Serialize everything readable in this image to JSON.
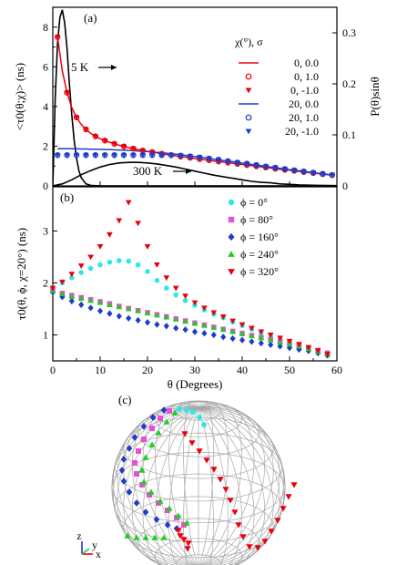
{
  "chart_data": [
    {
      "type": "line",
      "panel_label": "(a)",
      "ylabel": "<τ0(θ;χ)> (ns)",
      "y2label": "P(θ)sinθ",
      "xlim": [
        0,
        60
      ],
      "ylim": [
        0,
        9
      ],
      "y2lim": [
        0,
        0.35
      ],
      "yticks": [
        "0",
        "2",
        "4",
        "6",
        "8"
      ],
      "y2ticks": [
        "0",
        "0.1",
        "0.2",
        "0.3"
      ],
      "legend_title": "χ(°), σ",
      "legend_entries": [
        "0,  0.0",
        "0,  1.0",
        "0, -1.0",
        "20,  0.0",
        "20,  1.0",
        "20, -1.0"
      ],
      "annotations": [
        "5 K",
        "300 K"
      ],
      "x": [
        1,
        2,
        3,
        4,
        5,
        6,
        7,
        8,
        9,
        10,
        11,
        12,
        13,
        14,
        15,
        16,
        17,
        18,
        19,
        20,
        21,
        22,
        23,
        24,
        25,
        26,
        27,
        28,
        29,
        30,
        31,
        32,
        33,
        34,
        35,
        36,
        37,
        38,
        39,
        40,
        41,
        42,
        43,
        44,
        45,
        46,
        47,
        48,
        49,
        50,
        51,
        52,
        53,
        54,
        55,
        56,
        57,
        58,
        59
      ],
      "series": [
        {
          "name": "0,  0.0",
          "color": "#e8000b",
          "style": "line",
          "values": [
            7.5,
            5.8,
            4.7,
            3.95,
            3.45,
            3.1,
            2.85,
            2.65,
            2.5,
            2.38,
            2.28,
            2.2,
            2.12,
            2.05,
            1.99,
            1.93,
            1.88,
            1.83,
            1.78,
            1.74,
            1.7,
            1.66,
            1.62,
            1.58,
            1.55,
            1.51,
            1.48,
            1.45,
            1.42,
            1.38,
            1.35,
            1.32,
            1.29,
            1.26,
            1.23,
            1.2,
            1.17,
            1.14,
            1.11,
            1.08,
            1.05,
            1.02,
            0.99,
            0.96,
            0.93,
            0.9,
            0.87,
            0.84,
            0.81,
            0.79,
            0.76,
            0.73,
            0.7,
            0.67,
            0.65,
            0.62,
            0.59,
            0.57,
            0.54
          ]
        },
        {
          "name": "0,  1.0",
          "color": "#e8000b",
          "style": "open-circle",
          "values": [
            7.5,
            5.8,
            4.7,
            3.95,
            3.45,
            3.1,
            2.85,
            2.65,
            2.5,
            2.38,
            2.28,
            2.2,
            2.12,
            2.05,
            1.99,
            1.93,
            1.88,
            1.83,
            1.78,
            1.74,
            1.7,
            1.66,
            1.62,
            1.58,
            1.55,
            1.51,
            1.48,
            1.45,
            1.42,
            1.38,
            1.35,
            1.32,
            1.29,
            1.26,
            1.23,
            1.2,
            1.17,
            1.14,
            1.11,
            1.08,
            1.05,
            1.02,
            0.99,
            0.96,
            0.93,
            0.9,
            0.87,
            0.84,
            0.81,
            0.79,
            0.76,
            0.73,
            0.7,
            0.67,
            0.65,
            0.62,
            0.59,
            0.57,
            0.54
          ]
        },
        {
          "name": "0, -1.0",
          "color": "#e8000b",
          "style": "triangle-down",
          "values": [
            7.5,
            5.8,
            4.7,
            3.95,
            3.45,
            3.1,
            2.85,
            2.65,
            2.5,
            2.38,
            2.28,
            2.2,
            2.12,
            2.05,
            1.99,
            1.93,
            1.88,
            1.83,
            1.78,
            1.74,
            1.7,
            1.66,
            1.62,
            1.58,
            1.55,
            1.51,
            1.48,
            1.45,
            1.42,
            1.38,
            1.35,
            1.32,
            1.29,
            1.26,
            1.23,
            1.2,
            1.17,
            1.14,
            1.11,
            1.08,
            1.05,
            1.02,
            0.99,
            0.96,
            0.93,
            0.9,
            0.87,
            0.84,
            0.81,
            0.79,
            0.76,
            0.73,
            0.7,
            0.67,
            0.65,
            0.62,
            0.59,
            0.57,
            0.54
          ]
        },
        {
          "name": "20,  0.0",
          "color": "#1f3cc8",
          "style": "line",
          "values": [
            1.88,
            1.88,
            1.88,
            1.87,
            1.87,
            1.86,
            1.86,
            1.85,
            1.85,
            1.84,
            1.83,
            1.83,
            1.82,
            1.81,
            1.8,
            1.79,
            1.78,
            1.76,
            1.75,
            1.73,
            1.71,
            1.69,
            1.67,
            1.65,
            1.62,
            1.6,
            1.57,
            1.54,
            1.51,
            1.48,
            1.45,
            1.42,
            1.38,
            1.35,
            1.32,
            1.28,
            1.25,
            1.22,
            1.18,
            1.15,
            1.12,
            1.08,
            1.05,
            1.02,
            0.98,
            0.95,
            0.92,
            0.88,
            0.85,
            0.82,
            0.79,
            0.76,
            0.73,
            0.7,
            0.67,
            0.64,
            0.61,
            0.58,
            0.55
          ]
        },
        {
          "name": "20,  1.0",
          "color": "#1f3cc8",
          "style": "open-circle",
          "values": [
            1.55,
            1.55,
            1.55,
            1.55,
            1.55,
            1.55,
            1.55,
            1.55,
            1.55,
            1.55,
            1.55,
            1.55,
            1.55,
            1.55,
            1.55,
            1.55,
            1.55,
            1.55,
            1.55,
            1.55,
            1.55,
            1.55,
            1.55,
            1.55,
            1.55,
            1.54,
            1.53,
            1.51,
            1.49,
            1.47,
            1.44,
            1.41,
            1.38,
            1.35,
            1.32,
            1.28,
            1.25,
            1.22,
            1.18,
            1.15,
            1.12,
            1.08,
            1.05,
            1.02,
            0.98,
            0.95,
            0.92,
            0.88,
            0.85,
            0.82,
            0.79,
            0.76,
            0.73,
            0.7,
            0.67,
            0.64,
            0.61,
            0.58,
            0.55
          ]
        },
        {
          "name": "20, -1.0",
          "color": "#1f3cc8",
          "style": "triangle-down",
          "values": [
            1.55,
            1.55,
            1.55,
            1.55,
            1.55,
            1.55,
            1.55,
            1.55,
            1.55,
            1.55,
            1.55,
            1.55,
            1.55,
            1.55,
            1.55,
            1.55,
            1.55,
            1.55,
            1.55,
            1.55,
            1.55,
            1.55,
            1.55,
            1.55,
            1.55,
            1.54,
            1.53,
            1.51,
            1.49,
            1.47,
            1.44,
            1.41,
            1.38,
            1.35,
            1.32,
            1.28,
            1.25,
            1.22,
            1.18,
            1.15,
            1.12,
            1.08,
            1.05,
            1.02,
            0.98,
            0.95,
            0.92,
            0.88,
            0.85,
            0.82,
            0.79,
            0.76,
            0.73,
            0.7,
            0.67,
            0.64,
            0.61,
            0.58,
            0.55
          ]
        }
      ],
      "distributions": [
        {
          "name": "5 K",
          "axis": "right",
          "color": "#000000",
          "x": [
            0,
            0.5,
            1,
            1.5,
            2,
            2.5,
            3,
            3.5,
            4,
            4.5,
            5,
            5.5,
            6,
            7,
            8,
            10,
            15,
            20,
            30,
            40,
            50,
            60
          ],
          "values": [
            0,
            0.17,
            0.28,
            0.33,
            0.345,
            0.32,
            0.27,
            0.2,
            0.14,
            0.09,
            0.055,
            0.03,
            0.016,
            0.004,
            0.001,
            0,
            0,
            0,
            0,
            0,
            0,
            0
          ]
        },
        {
          "name": "300 K",
          "axis": "right",
          "color": "#000000",
          "x": [
            0,
            2,
            4,
            6,
            8,
            10,
            12,
            14,
            16,
            18,
            20,
            22,
            24,
            26,
            28,
            30,
            32,
            34,
            36,
            38,
            40,
            42,
            44,
            46,
            48,
            50,
            52,
            54,
            56,
            58,
            60
          ],
          "values": [
            0,
            0.004,
            0.012,
            0.022,
            0.03,
            0.037,
            0.042,
            0.045,
            0.046,
            0.046,
            0.045,
            0.043,
            0.04,
            0.037,
            0.033,
            0.029,
            0.025,
            0.021,
            0.018,
            0.015,
            0.012,
            0.009,
            0.007,
            0.006,
            0.004,
            0.003,
            0.002,
            0.0015,
            0.001,
            0.0007,
            0.0005
          ]
        }
      ]
    },
    {
      "type": "scatter",
      "panel_label": "(b)",
      "xlabel": "θ (Degrees)",
      "ylabel": "τ0(θ, ϕ, χ=20°) (ns)",
      "xlim": [
        0,
        60
      ],
      "ylim": [
        0.5,
        3.85
      ],
      "xticks": [
        "0",
        "10",
        "20",
        "30",
        "40",
        "50",
        "60"
      ],
      "yticks": [
        "1",
        "2",
        "3"
      ],
      "x": [
        0,
        2,
        4,
        6,
        8,
        10,
        12,
        14,
        16,
        18,
        20,
        22,
        24,
        26,
        28,
        30,
        32,
        34,
        36,
        38,
        40,
        42,
        44,
        46,
        48,
        50,
        52,
        54,
        56,
        58,
        60
      ],
      "series": [
        {
          "name": "ϕ =     0°",
          "color": "#33e6e6",
          "marker": "circle",
          "values": [
            1.9,
            2.0,
            2.1,
            2.2,
            2.28,
            2.35,
            2.4,
            2.43,
            2.42,
            2.35,
            2.22,
            2.05,
            1.9,
            1.77,
            1.66,
            1.57,
            1.48,
            1.4,
            1.33,
            1.25,
            1.18,
            1.11,
            1.04,
            0.98,
            0.92,
            0.85,
            0.79,
            0.73,
            0.67,
            0.6,
            0.55
          ]
        },
        {
          "name": "ϕ =   80°",
          "color": "#e84fd8",
          "marker": "square",
          "values": [
            1.85,
            1.8,
            1.76,
            1.72,
            1.68,
            1.64,
            1.6,
            1.55,
            1.51,
            1.47,
            1.43,
            1.39,
            1.35,
            1.31,
            1.27,
            1.23,
            1.19,
            1.15,
            1.11,
            1.07,
            1.03,
            0.99,
            0.95,
            0.91,
            0.87,
            0.83,
            0.79,
            0.74,
            0.7,
            0.65,
            0.58
          ]
        },
        {
          "name": "ϕ = 160°",
          "color": "#1f3cc8",
          "marker": "diamond",
          "values": [
            1.82,
            1.73,
            1.65,
            1.58,
            1.52,
            1.46,
            1.41,
            1.36,
            1.32,
            1.28,
            1.24,
            1.2,
            1.17,
            1.13,
            1.1,
            1.06,
            1.03,
            1.0,
            0.96,
            0.93,
            0.9,
            0.87,
            0.84,
            0.81,
            0.78,
            0.75,
            0.72,
            0.69,
            0.65,
            0.61,
            0.56
          ]
        },
        {
          "name": "ϕ = 240°",
          "color": "#22cc22",
          "marker": "triangle-up",
          "values": [
            1.85,
            1.79,
            1.74,
            1.7,
            1.66,
            1.62,
            1.58,
            1.54,
            1.5,
            1.46,
            1.42,
            1.38,
            1.34,
            1.3,
            1.26,
            1.22,
            1.18,
            1.14,
            1.1,
            1.06,
            1.02,
            0.98,
            0.94,
            0.9,
            0.86,
            0.82,
            0.78,
            0.73,
            0.68,
            0.63,
            0.57
          ]
        },
        {
          "name": "ϕ = 320°",
          "color": "#e8000b",
          "marker": "triangle-down",
          "values": [
            1.9,
            2.02,
            2.17,
            2.33,
            2.5,
            2.7,
            2.93,
            3.2,
            3.55,
            3.15,
            2.7,
            2.35,
            2.1,
            1.9,
            1.75,
            1.62,
            1.52,
            1.43,
            1.35,
            1.27,
            1.2,
            1.13,
            1.06,
            1.0,
            0.94,
            0.88,
            0.82,
            0.76,
            0.7,
            0.63,
            0.57
          ]
        }
      ]
    },
    {
      "type": "other",
      "panel_label": "(c)",
      "axis_labels": [
        "z",
        "y",
        "x"
      ]
    }
  ]
}
